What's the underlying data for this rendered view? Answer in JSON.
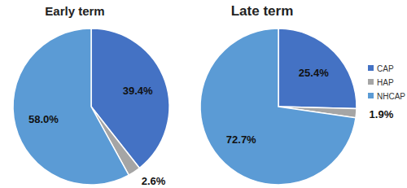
{
  "chart_data": [
    {
      "type": "pie",
      "title": "Early term",
      "categories": [
        "CAP",
        "HAP",
        "NHCAP"
      ],
      "values": [
        39.4,
        2.6,
        58.0
      ],
      "value_labels": [
        "39.4%",
        "2.6%",
        "58.0%"
      ],
      "colors": [
        "#4472c4",
        "#a5a5a5",
        "#5b9bd5"
      ],
      "data_labels": true
    },
    {
      "type": "pie",
      "title": "Late term",
      "categories": [
        "CAP",
        "HAP",
        "NHCAP"
      ],
      "values": [
        25.4,
        1.9,
        72.7
      ],
      "value_labels": [
        "25.4%",
        "1.9%",
        "72.7%"
      ],
      "colors": [
        "#4472c4",
        "#a5a5a5",
        "#5b9bd5"
      ],
      "data_labels": true,
      "legend": "right"
    }
  ]
}
